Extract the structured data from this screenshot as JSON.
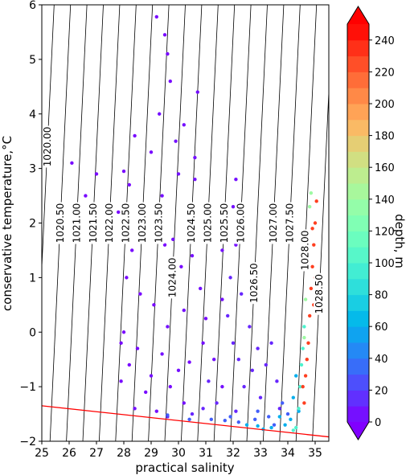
{
  "chart_data": {
    "type": "scatter",
    "title": "",
    "xlabel": "practical salinity",
    "ylabel": "conservative temperature,°C",
    "xlim": [
      25,
      35.5
    ],
    "ylim": [
      -2,
      6
    ],
    "x_ticks": [
      "25",
      "26",
      "27",
      "28",
      "29",
      "30",
      "31",
      "32",
      "33",
      "34",
      "35"
    ],
    "y_ticks": [
      "−2",
      "−1",
      "0",
      "1",
      "2",
      "3",
      "4",
      "5",
      "6"
    ],
    "grid": false,
    "density_contours": {
      "values": [
        1020.0,
        1020.5,
        1021.0,
        1021.5,
        1022.0,
        1022.5,
        1023.0,
        1023.5,
        1024.0,
        1024.5,
        1025.0,
        1025.5,
        1026.0,
        1026.5,
        1027.0,
        1027.5,
        1028.0,
        1028.5
      ],
      "labels": [
        "1020.00",
        "1020.50",
        "1021.00",
        "1021.50",
        "1022.00",
        "1022.50",
        "1023.00",
        "1023.50",
        "1024.00",
        "1024.50",
        "1025.00",
        "1025.50",
        "1026.00",
        "1026.50",
        "1027.00",
        "1027.50",
        "1028.00",
        "1028.50"
      ]
    },
    "freezing_line": {
      "color": "#ff0000",
      "points": [
        [
          25,
          -1.35
        ],
        [
          35.5,
          -1.92
        ]
      ]
    },
    "colorbar": {
      "label": "depth, m",
      "min": 0,
      "max": 250,
      "ticks": [
        "0",
        "20",
        "40",
        "60",
        "80",
        "100",
        "120",
        "140",
        "160",
        "180",
        "200",
        "220",
        "240"
      ],
      "extend": "both",
      "colormap": "rainbow"
    },
    "series": [
      {
        "depth": 3,
        "points": [
          [
            29.2,
            5.78
          ],
          [
            29.5,
            5.45
          ],
          [
            29.6,
            5.1
          ],
          [
            29.7,
            4.6
          ],
          [
            28.4,
            3.6
          ],
          [
            29.0,
            3.3
          ],
          [
            28.0,
            2.95
          ],
          [
            28.2,
            2.7
          ],
          [
            27.0,
            2.9
          ],
          [
            26.1,
            3.1
          ],
          [
            26.6,
            2.5
          ],
          [
            27.8,
            2.2
          ],
          [
            28.6,
            2.0
          ],
          [
            29.5,
            1.6
          ],
          [
            30.1,
            1.2
          ],
          [
            28.1,
            1.0
          ],
          [
            28.0,
            0.0
          ],
          [
            28.5,
            -0.3
          ],
          [
            27.9,
            -0.9
          ],
          [
            28.8,
            -1.1
          ],
          [
            29.7,
            -1.0
          ],
          [
            30.4,
            -0.55
          ],
          [
            31.0,
            0.25
          ],
          [
            28.3,
            1.5
          ],
          [
            27.9,
            -0.2
          ],
          [
            28.2,
            -0.6
          ],
          [
            29.1,
            0.5
          ],
          [
            28.6,
            0.7
          ]
        ]
      },
      {
        "depth": 5,
        "points": [
          [
            30.7,
            4.4
          ],
          [
            30.2,
            3.8
          ],
          [
            29.9,
            3.5
          ],
          [
            30.6,
            2.8
          ],
          [
            31.2,
            2.2
          ],
          [
            29.4,
            2.5
          ],
          [
            29.8,
            1.7
          ],
          [
            30.5,
            1.4
          ],
          [
            31.6,
            1.5
          ],
          [
            32.1,
            2.8
          ],
          [
            32.0,
            2.3
          ],
          [
            31.6,
            0.6
          ],
          [
            30.8,
            0.8
          ],
          [
            30.2,
            0.4
          ],
          [
            29.6,
            0.1
          ],
          [
            29.4,
            -0.4
          ],
          [
            30.0,
            -0.7
          ],
          [
            30.9,
            -0.2
          ],
          [
            31.3,
            -0.5
          ],
          [
            31.6,
            -1.0
          ],
          [
            30.2,
            -1.3
          ],
          [
            29.2,
            -1.45
          ],
          [
            28.4,
            -1.4
          ],
          [
            31.2,
            1.8
          ],
          [
            29.0,
            -0.8
          ],
          [
            30.6,
            3.2
          ],
          [
            29.3,
            4.0
          ],
          [
            30.4,
            2.1
          ],
          [
            32.1,
            1.6
          ],
          [
            30.0,
            2.9
          ]
        ]
      },
      {
        "depth": 12,
        "points": [
          [
            32.3,
            0.7
          ],
          [
            32.6,
            0.1
          ],
          [
            32.9,
            -0.3
          ],
          [
            33.2,
            -0.6
          ],
          [
            32.0,
            -0.2
          ],
          [
            31.8,
            0.3
          ],
          [
            32.4,
            -1.0
          ],
          [
            33.0,
            -1.2
          ],
          [
            31.4,
            -1.3
          ],
          [
            30.9,
            -1.4
          ],
          [
            33.6,
            -0.9
          ],
          [
            31.9,
            1.0
          ],
          [
            32.2,
            -0.5
          ],
          [
            33.4,
            -0.2
          ],
          [
            31.1,
            -0.9
          ],
          [
            32.7,
            -0.7
          ],
          [
            33.7,
            -1.4
          ],
          [
            30.5,
            -1.5
          ],
          [
            29.6,
            -1.55
          ],
          [
            32.1,
            -1.45
          ]
        ]
      },
      {
        "depth": 30,
        "points": [
          [
            33.3,
            -1.55
          ],
          [
            32.8,
            -1.6
          ],
          [
            32.2,
            -1.65
          ],
          [
            31.7,
            -1.62
          ],
          [
            31.2,
            -1.6
          ],
          [
            33.8,
            -1.3
          ],
          [
            34.0,
            -1.5
          ],
          [
            30.4,
            -1.6
          ],
          [
            29.6,
            -1.52
          ],
          [
            33.5,
            -1.7
          ],
          [
            32.9,
            -1.45
          ],
          [
            31.9,
            -1.55
          ]
        ]
      },
      {
        "depth": 60,
        "points": [
          [
            33.9,
            -1.7
          ],
          [
            34.1,
            -1.6
          ],
          [
            33.4,
            -1.75
          ],
          [
            32.9,
            -1.72
          ],
          [
            34.2,
            -1.2
          ],
          [
            34.3,
            -0.8
          ],
          [
            33.7,
            -1.55
          ],
          [
            34.4,
            -1.45
          ],
          [
            33.1,
            -1.78
          ],
          [
            32.5,
            -1.7
          ]
        ]
      },
      {
        "depth": 100,
        "points": [
          [
            34.3,
            -1.75
          ],
          [
            34.4,
            -1.4
          ],
          [
            34.5,
            -0.6
          ],
          [
            34.6,
            0.1
          ],
          [
            34.45,
            -1.0
          ],
          [
            34.2,
            -1.8
          ],
          [
            34.55,
            -0.3
          ]
        ]
      },
      {
        "depth": 140,
        "points": [
          [
            34.65,
            0.6
          ],
          [
            34.7,
            1.2
          ],
          [
            34.75,
            1.8
          ],
          [
            34.8,
            2.3
          ],
          [
            34.85,
            2.55
          ],
          [
            34.6,
            -0.1
          ]
        ]
      },
      {
        "depth": 230,
        "points": [
          [
            34.6,
            -1.3
          ],
          [
            34.65,
            -0.8
          ],
          [
            34.75,
            -0.2
          ],
          [
            34.8,
            0.3
          ],
          [
            34.85,
            0.8
          ],
          [
            34.9,
            1.2
          ],
          [
            34.95,
            1.6
          ],
          [
            35.0,
            2.0
          ],
          [
            35.05,
            2.4
          ],
          [
            34.95,
            0.5
          ],
          [
            34.7,
            -0.5
          ],
          [
            34.9,
            1.9
          ],
          [
            34.55,
            -1.0
          ],
          [
            35.0,
            1.0
          ]
        ]
      }
    ]
  }
}
